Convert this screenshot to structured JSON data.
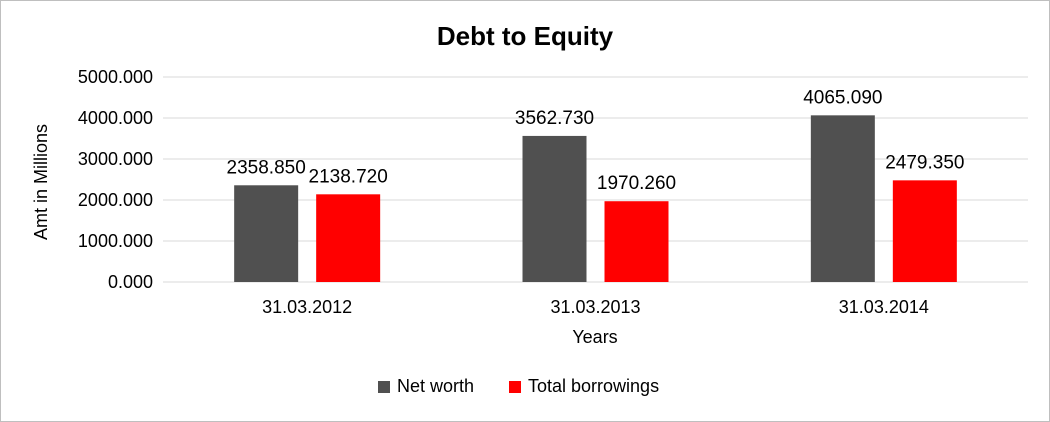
{
  "chart_data": {
    "type": "bar",
    "title": "Debt to Equity",
    "xlabel": "Years",
    "ylabel": "Amt in Millions",
    "categories": [
      "31.03.2012",
      "31.03.2013",
      "31.03.2014"
    ],
    "series": [
      {
        "name": "Net worth",
        "color": "#505050",
        "values": [
          2358.85,
          3562.73,
          4065.09
        ],
        "labels": [
          "2358.850",
          "3562.730",
          "4065.090"
        ]
      },
      {
        "name": "Total borrowings",
        "color": "#ff0000",
        "values": [
          2138.72,
          1970.26,
          2479.35
        ],
        "labels": [
          "2138.720",
          "1970.260",
          "2479.350"
        ]
      }
    ],
    "ylim": [
      0,
      5000
    ],
    "yticks": [
      0,
      1000,
      2000,
      3000,
      4000,
      5000
    ],
    "ytick_labels": [
      "0.000",
      "1000.000",
      "2000.000",
      "3000.000",
      "4000.000",
      "5000.000"
    ],
    "grid": true,
    "gridline_color": "#d9d9d9",
    "legend_position": "bottom"
  }
}
